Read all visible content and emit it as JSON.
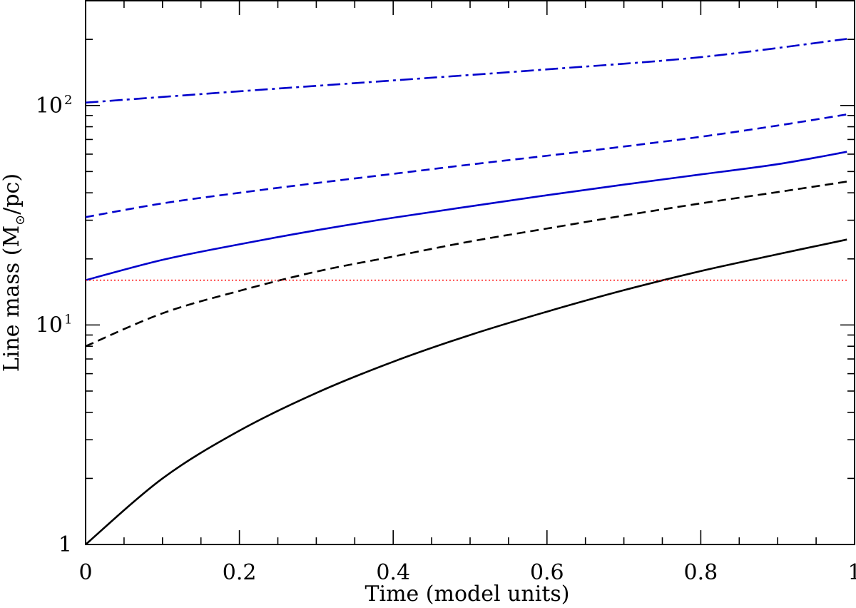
{
  "chart_data": {
    "type": "line",
    "xlabel": "Time (model units)",
    "ylabel_prefix": "Line mass (M",
    "ylabel_sun": "⊙",
    "ylabel_suffix": "/pc)",
    "xlim": [
      0,
      1
    ],
    "ylim": [
      1,
      300
    ],
    "yscale": "log",
    "grid": false,
    "x_ticks": [
      0,
      0.2,
      0.4,
      0.6,
      0.8,
      1
    ],
    "x_tick_labels": [
      "0",
      "0.2",
      "0.4",
      "0.6",
      "0.8",
      "1"
    ],
    "y_tick_labels": [
      {
        "value": 1,
        "base": "1",
        "exp": ""
      },
      {
        "value": 10,
        "base": "10",
        "exp": "1"
      },
      {
        "value": 100,
        "base": "10",
        "exp": "2"
      }
    ],
    "series": [
      {
        "style": "solid",
        "color": "#000000",
        "x": [
          0,
          0.1,
          0.2,
          0.3,
          0.4,
          0.5,
          0.6,
          0.7,
          0.8,
          0.9,
          0.99
        ],
        "values": [
          1.0,
          2.0,
          3.3,
          4.9,
          6.8,
          9.0,
          11.5,
          14.4,
          17.6,
          21.0,
          24.5
        ]
      },
      {
        "style": "dashed",
        "color": "#000000",
        "x": [
          0,
          0.1,
          0.2,
          0.3,
          0.4,
          0.5,
          0.6,
          0.7,
          0.8,
          0.9,
          0.99
        ],
        "values": [
          8.0,
          11.3,
          14.3,
          17.5,
          20.5,
          24.0,
          27.5,
          31.5,
          35.8,
          40.3,
          45.0
        ]
      },
      {
        "style": "solid",
        "color": "#0000cc",
        "x": [
          0,
          0.1,
          0.2,
          0.3,
          0.4,
          0.5,
          0.6,
          0.7,
          0.8,
          0.9,
          0.99
        ],
        "values": [
          16.0,
          19.8,
          23.3,
          27.0,
          30.8,
          34.7,
          39.0,
          43.6,
          48.5,
          54.0,
          61.5
        ]
      },
      {
        "style": "dashed",
        "color": "#0000cc",
        "x": [
          0,
          0.1,
          0.2,
          0.3,
          0.4,
          0.5,
          0.6,
          0.7,
          0.8,
          0.9,
          0.99
        ],
        "values": [
          31.0,
          35.8,
          40.0,
          44.3,
          48.8,
          53.8,
          59.0,
          65.0,
          72.0,
          81.0,
          91.0
        ]
      },
      {
        "style": "dashdot",
        "color": "#0000cc",
        "x": [
          0,
          0.2,
          0.4,
          0.6,
          0.8,
          0.99
        ],
        "values": [
          103.0,
          116.0,
          130.0,
          146.0,
          166.0,
          201.0
        ]
      },
      {
        "style": "dotted",
        "color": "#ff0000",
        "x": [
          0,
          0.99
        ],
        "values": [
          16.0,
          16.0
        ]
      }
    ]
  }
}
